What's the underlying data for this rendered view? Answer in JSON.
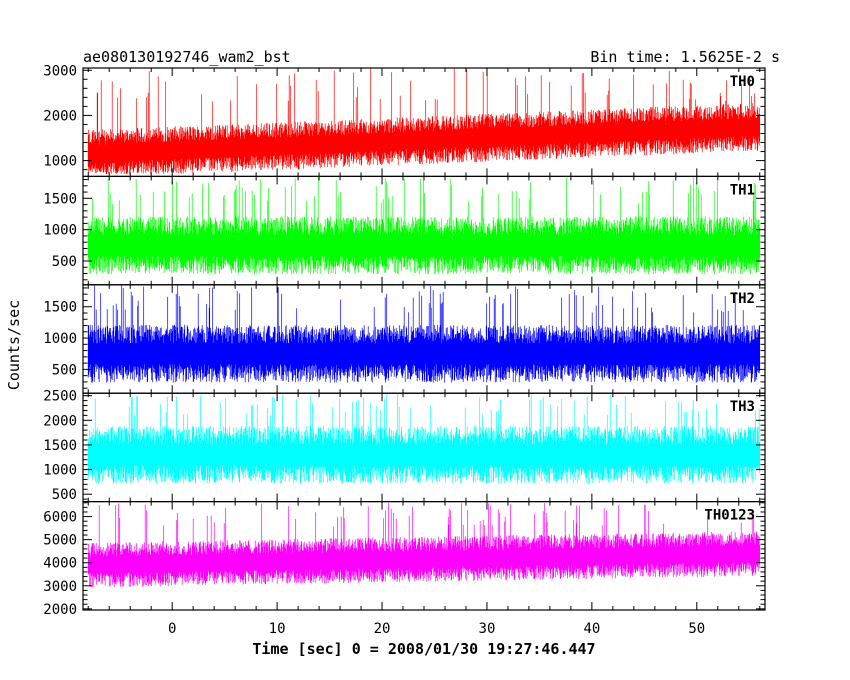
{
  "chart_data": {
    "type": "line",
    "title": "ae080130192746_wam2_bst",
    "subtitle": "Bin time: 1.5625E-2 s",
    "xlabel": "Time [sec] 0 = 2008/01/30 19:27:46.447",
    "ylabel": "Counts/sec",
    "xlim": [
      -8.5,
      56.5
    ],
    "data_range": [
      -8,
      56
    ],
    "x_ticks": [
      "0",
      "10",
      "20",
      "30",
      "40",
      "50"
    ],
    "x_tick_values": [
      0,
      10,
      20,
      30,
      40,
      50
    ],
    "grid": false,
    "panels": [
      {
        "name": "TH0",
        "color": "#ff0000",
        "ylim": [
          650,
          3050
        ],
        "y_ticks": [
          "1000",
          "2000",
          "3000"
        ],
        "y_tick_values": [
          1000,
          2000,
          3000
        ],
        "trend_start": 1150,
        "trend_end": 1750,
        "noise": 380,
        "spike_min": 2300,
        "spike_max": 3050,
        "floor": 700
      },
      {
        "name": "TH1",
        "color": "#00ff00",
        "ylim": [
          120,
          1850
        ],
        "y_ticks": [
          "500",
          "1000",
          "1500"
        ],
        "y_tick_values": [
          500,
          1000,
          1500
        ],
        "trend_start": 750,
        "trend_end": 750,
        "noise": 330,
        "spike_min": 1400,
        "spike_max": 1850,
        "floor": 150
      },
      {
        "name": "TH2",
        "color": "#0000ff",
        "ylim": [
          120,
          1850
        ],
        "y_ticks": [
          "500",
          "1000",
          "1500"
        ],
        "y_tick_values": [
          500,
          1000,
          1500
        ],
        "trend_start": 750,
        "trend_end": 750,
        "noise": 330,
        "spike_min": 1400,
        "spike_max": 1850,
        "floor": 150
      },
      {
        "name": "TH3",
        "color": "#00ffff",
        "ylim": [
          350,
          2550
        ],
        "y_ticks": [
          "500",
          "1000",
          "1500",
          "2000",
          "2500"
        ],
        "y_tick_values": [
          500,
          1000,
          1500,
          2000,
          2500
        ],
        "trend_start": 1300,
        "trend_end": 1300,
        "noise": 420,
        "spike_min": 2100,
        "spike_max": 2550,
        "floor": 400
      },
      {
        "name": "TH0123",
        "color": "#ff00ff",
        "ylim": [
          1950,
          6650
        ],
        "y_ticks": [
          "2000",
          "3000",
          "4000",
          "5000",
          "6000"
        ],
        "y_tick_values": [
          2000,
          3000,
          4000,
          5000,
          6000
        ],
        "trend_start": 3900,
        "trend_end": 4400,
        "noise": 700,
        "spike_min": 5500,
        "spike_max": 6600,
        "floor": 2000
      }
    ]
  }
}
